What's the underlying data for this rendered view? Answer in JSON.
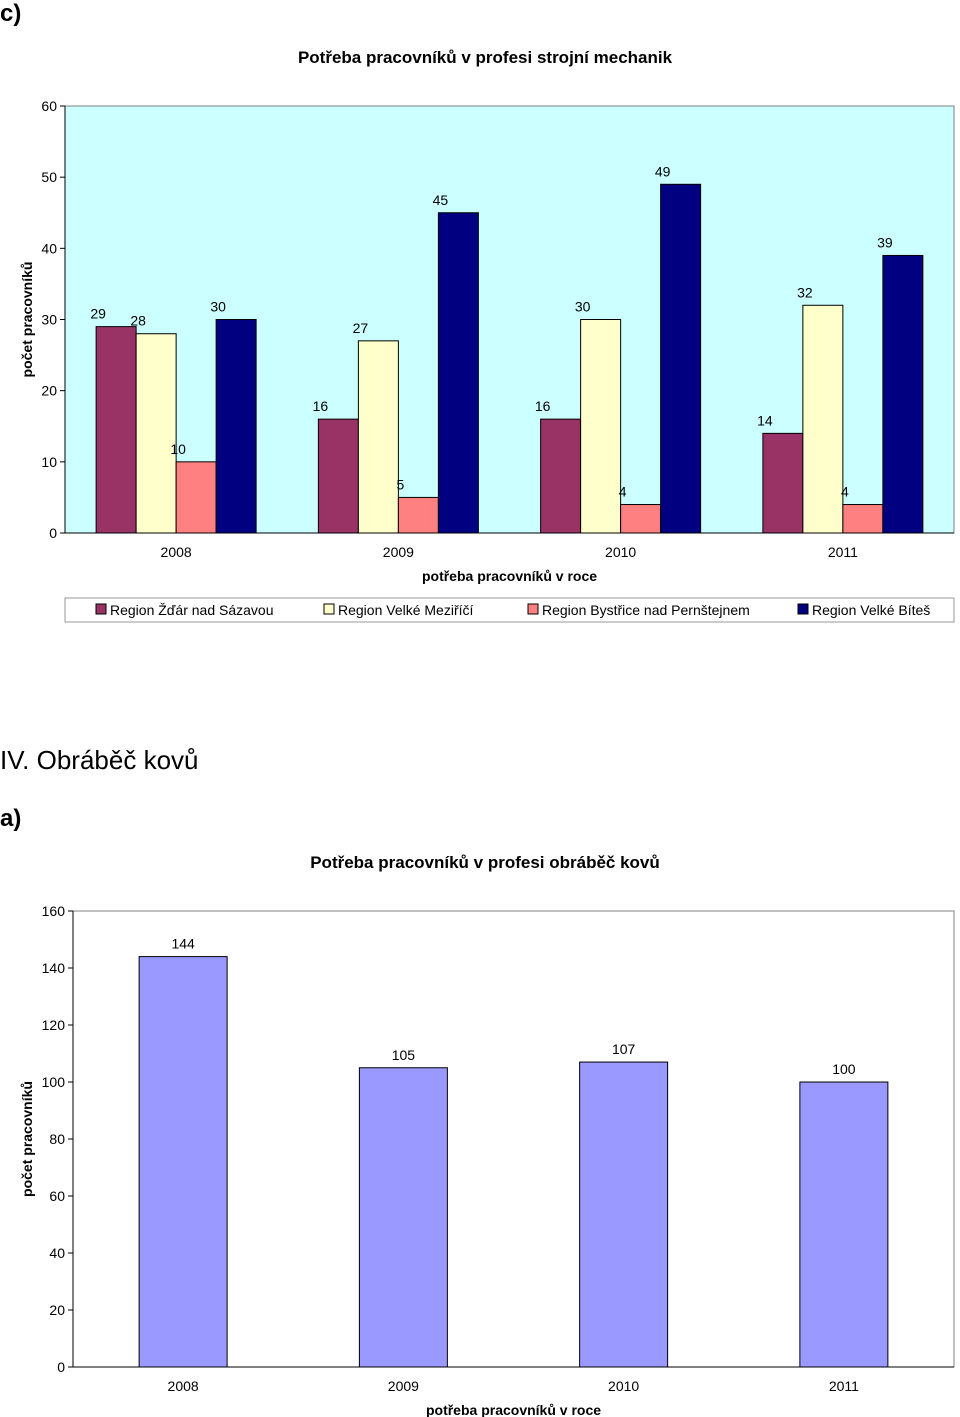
{
  "page": {
    "label_c": "c)",
    "section_title": "IV. Obráběč kovů",
    "label_a": "a)"
  },
  "chart_data": [
    {
      "type": "bar",
      "title": "Potřeba pracovníků v profesi strojní mechanik",
      "xlabel": "potřeba pracovníků v roce",
      "ylabel": "počet pracovníků",
      "categories": [
        "2008",
        "2009",
        "2010",
        "2011"
      ],
      "ylim": [
        0,
        60
      ],
      "yticks": [
        0,
        10,
        20,
        30,
        40,
        50,
        60
      ],
      "plot_background": "#ccffff",
      "legend_position": "bottom",
      "series": [
        {
          "name": "Region Žďár nad Sázavou",
          "color": "#993366",
          "values": [
            29,
            16,
            16,
            14
          ]
        },
        {
          "name": "Region Velké Meziříčí",
          "color": "#ffffcc",
          "values": [
            28,
            27,
            30,
            32
          ]
        },
        {
          "name": "Region Bystřice nad Pernštejnem",
          "color": "#ff8080",
          "values": [
            10,
            5,
            4,
            4
          ]
        },
        {
          "name": "Region Velké Bíteš",
          "color": "#000080",
          "values": [
            30,
            45,
            49,
            39
          ]
        }
      ]
    },
    {
      "type": "bar",
      "title": "Potřeba pracovníků v profesi obráběč kovů",
      "xlabel": "potřeba pracovníků v roce",
      "ylabel": "počet pracovníků",
      "categories": [
        "2008",
        "2009",
        "2010",
        "2011"
      ],
      "ylim": [
        0,
        160
      ],
      "yticks": [
        0,
        20,
        40,
        60,
        80,
        100,
        120,
        140,
        160
      ],
      "plot_background": "#ffffff",
      "series": [
        {
          "name": "počet pracovníků",
          "color": "#9999ff",
          "values": [
            144,
            105,
            107,
            100
          ]
        }
      ]
    }
  ]
}
